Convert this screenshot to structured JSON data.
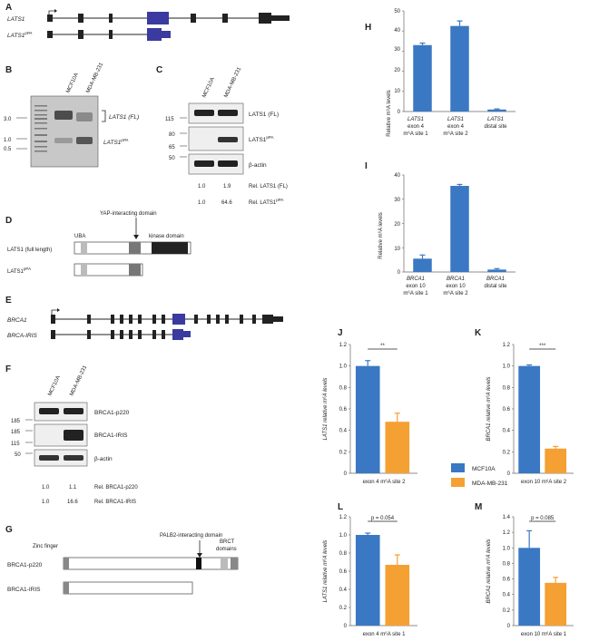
{
  "panels": {
    "A": {
      "letter": "A",
      "gene_full": "LATS1",
      "gene_pa": "LATS1",
      "gene_pa_sup": "pPA"
    },
    "B": {
      "letter": "B",
      "lanes": [
        "MCF10A",
        "MDA-MB-231"
      ],
      "ladder": [
        "3.0",
        "1.0",
        "0.5"
      ],
      "band_fl": "LATS1 (FL)",
      "band_pa": "LATS1",
      "band_pa_sup": "pPA"
    },
    "C": {
      "letter": "C",
      "lanes": [
        "MCF10A",
        "MDA-MB-231"
      ],
      "mw": [
        "115",
        "80",
        "65",
        "50"
      ],
      "blots": [
        "LATS1 (FL)",
        "LATS1",
        "β-actin"
      ],
      "blot_pa_sup": "pPA",
      "q1_vals": [
        "1.0",
        "1.9"
      ],
      "q1_label": "Rel. LATS1 (FL)",
      "q2_vals": [
        "1.0",
        "64.6"
      ],
      "q2_label": "Rel. LATS1",
      "q2_sup": "pPA"
    },
    "D": {
      "letter": "D",
      "annot": "YAP-interacting domain",
      "uba": "UBA",
      "kinase": "kinase domain",
      "row1": "LATS1 (full length)",
      "row2": "LATS1",
      "row2_sup": "pPA"
    },
    "E": {
      "letter": "E",
      "gene_full": "BRCA1",
      "gene_iris": "BRCA-IRIS"
    },
    "F": {
      "letter": "F",
      "lanes": [
        "MCF10A",
        "MDA-MB-231"
      ],
      "mw": [
        "185",
        "185",
        "115",
        "50"
      ],
      "blots": [
        "BRCA1-p220",
        "BRCA1-IRIS",
        "β-actin"
      ],
      "q1_vals": [
        "1.0",
        "1.1"
      ],
      "q1_label": "Rel. BRCA1-p220",
      "q2_vals": [
        "1.0",
        "16.6"
      ],
      "q2_label": "Rel. BRCA1-IRIS"
    },
    "G": {
      "letter": "G",
      "zinc": "Zinc finger",
      "palb2": "PALB2-interacting domain",
      "brct1": "BRCT",
      "brct2": "domains",
      "row1": "BRCA1-p220",
      "row2": "BRCA1-IRIS"
    },
    "H": {
      "letter": "H",
      "ylabel": "Relative m⁶A levels",
      "ticks": [
        "0",
        "10",
        "20",
        "30",
        "40",
        "50"
      ],
      "groups": [
        [
          "LATS1",
          "exon 4",
          "m⁶A site 1"
        ],
        [
          "LATS1",
          "exon 4",
          "m⁶A site 2"
        ],
        [
          "LATS1",
          "distal site",
          ""
        ]
      ]
    },
    "I": {
      "letter": "I",
      "ylabel": "Relative m⁶A levels",
      "ticks": [
        "0",
        "10",
        "20",
        "30",
        "40"
      ],
      "groups": [
        [
          "BRCA1",
          "exon 10",
          "m⁶A site 1"
        ],
        [
          "BRCA1",
          "exon 10",
          "m⁶A site 2"
        ],
        [
          "BRCA1",
          "distal site",
          ""
        ]
      ]
    },
    "J": {
      "letter": "J",
      "ylabel": "LATS1 relative m⁶A levels",
      "ticks": [
        "0",
        "0.2",
        "0.4",
        "0.6",
        "0.8",
        "1.0",
        "1.2"
      ],
      "xlabel": "exon 4 m⁶A site 2",
      "sig": "**"
    },
    "K": {
      "letter": "K",
      "ylabel": "BRCA1 relative m⁶A levels",
      "ticks": [
        "0",
        "0.2",
        "0.4",
        "0.6",
        "0.8",
        "1.0",
        "1.2"
      ],
      "xlabel": "exon 10 m⁶A site 2",
      "sig": "***"
    },
    "L": {
      "letter": "L",
      "ylabel": "LATS1 relative m⁶A levels",
      "ticks": [
        "0",
        "0.2",
        "0.4",
        "0.6",
        "0.8",
        "1.0",
        "1.2"
      ],
      "xlabel": "exon 4 m⁶A site 1",
      "sig": "p = 0.054"
    },
    "M": {
      "letter": "M",
      "ylabel": "BRCA1 relative m⁶A levels",
      "ticks": [
        "0",
        "0.2",
        "0.4",
        "0.6",
        "0.8",
        "1.0",
        "1.2",
        "1.4"
      ],
      "xlabel": "exon 10 m⁶A site 1",
      "sig": "p = 0.085"
    }
  },
  "legend": [
    {
      "name": "MCF10A",
      "color": "#3a78c3"
    },
    {
      "name": "MDA-MB-231",
      "color": "#f5a033"
    }
  ],
  "colors": {
    "blue": "#3a78c3",
    "orange": "#f5a033",
    "exon_highlight": "#3a3aa0"
  },
  "chart_data": [
    {
      "id": "H",
      "type": "bar",
      "categories": [
        "LATS1 exon 4 m⁶A site 1",
        "LATS1 exon 4 m⁶A site 2",
        "LATS1 distal site"
      ],
      "values": [
        33,
        42.5,
        1
      ],
      "errors": [
        1,
        2.5,
        0.3
      ],
      "ylim": [
        0,
        50
      ],
      "ylabel": "Relative m⁶A levels"
    },
    {
      "id": "I",
      "type": "bar",
      "categories": [
        "BRCA1 exon 10 m⁶A site 1",
        "BRCA1 exon 10 m⁶A site 2",
        "BRCA1 distal site"
      ],
      "values": [
        5.5,
        35.5,
        1
      ],
      "errors": [
        1.5,
        0.6,
        0.4
      ],
      "ylim": [
        0,
        40
      ],
      "ylabel": "Relative m⁶A levels"
    },
    {
      "id": "J",
      "type": "bar",
      "series": [
        {
          "name": "MCF10A",
          "values": [
            1.0
          ],
          "errors": [
            0.05
          ]
        },
        {
          "name": "MDA-MB-231",
          "values": [
            0.48
          ],
          "errors": [
            0.08
          ]
        }
      ],
      "ylim": [
        0,
        1.2
      ],
      "xlabel": "exon 4 m⁶A site 2",
      "ylabel": "LATS1 relative m⁶A levels"
    },
    {
      "id": "K",
      "type": "bar",
      "series": [
        {
          "name": "MCF10A",
          "values": [
            1.0
          ],
          "errors": [
            0.01
          ]
        },
        {
          "name": "MDA-MB-231",
          "values": [
            0.23
          ],
          "errors": [
            0.02
          ]
        }
      ],
      "ylim": [
        0,
        1.2
      ],
      "xlabel": "exon 10 m⁶A site 2",
      "ylabel": "BRCA1 relative m⁶A levels"
    },
    {
      "id": "L",
      "type": "bar",
      "series": [
        {
          "name": "MCF10A",
          "values": [
            1.0
          ],
          "errors": [
            0.02
          ]
        },
        {
          "name": "MDA-MB-231",
          "values": [
            0.67
          ],
          "errors": [
            0.11
          ]
        }
      ],
      "ylim": [
        0,
        1.2
      ],
      "xlabel": "exon 4 m⁶A site 1",
      "ylabel": "LATS1 relative m⁶A levels"
    },
    {
      "id": "M",
      "type": "bar",
      "series": [
        {
          "name": "MCF10A",
          "values": [
            1.0
          ],
          "errors": [
            0.22
          ]
        },
        {
          "name": "MDA-MB-231",
          "values": [
            0.55
          ],
          "errors": [
            0.07
          ]
        }
      ],
      "ylim": [
        0,
        1.4
      ],
      "xlabel": "exon 10 m⁶A site 1",
      "ylabel": "BRCA1 relative m⁶A levels"
    }
  ]
}
